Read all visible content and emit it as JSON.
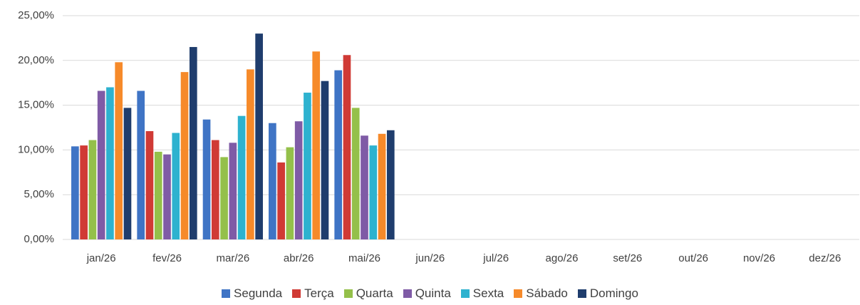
{
  "chart_data": {
    "type": "bar",
    "categories": [
      "jan/26",
      "fev/26",
      "mar/26",
      "abr/26",
      "mai/26",
      "jun/26",
      "jul/26",
      "ago/26",
      "set/26",
      "out/26",
      "nov/26",
      "dez/26"
    ],
    "series": [
      {
        "name": "Segunda",
        "color": "#3f74c5",
        "values": [
          10.4,
          16.6,
          13.4,
          13.0,
          18.9,
          null,
          null,
          null,
          null,
          null,
          null,
          null
        ]
      },
      {
        "name": "Terça",
        "color": "#d03a35",
        "values": [
          10.5,
          12.1,
          11.1,
          8.6,
          20.6,
          null,
          null,
          null,
          null,
          null,
          null,
          null
        ]
      },
      {
        "name": "Quarta",
        "color": "#94c04a",
        "values": [
          11.1,
          9.8,
          9.2,
          10.3,
          14.7,
          null,
          null,
          null,
          null,
          null,
          null,
          null
        ]
      },
      {
        "name": "Quinta",
        "color": "#7f5ba6",
        "values": [
          16.6,
          9.5,
          10.8,
          13.2,
          11.6,
          null,
          null,
          null,
          null,
          null,
          null,
          null
        ]
      },
      {
        "name": "Sexta",
        "color": "#2eb2cf",
        "values": [
          17.0,
          11.9,
          13.8,
          16.4,
          10.5,
          null,
          null,
          null,
          null,
          null,
          null,
          null
        ]
      },
      {
        "name": "Sábado",
        "color": "#f68a2a",
        "values": [
          19.8,
          18.7,
          19.0,
          21.0,
          11.8,
          null,
          null,
          null,
          null,
          null,
          null,
          null
        ]
      },
      {
        "name": "Domingo",
        "color": "#1f3d6d",
        "values": [
          14.7,
          21.5,
          23.0,
          17.7,
          12.2,
          null,
          null,
          null,
          null,
          null,
          null,
          null
        ]
      }
    ],
    "ylim": [
      0,
      25
    ],
    "yticks": [
      {
        "value": 0,
        "label": "0,00%"
      },
      {
        "value": 5,
        "label": "5,00%"
      },
      {
        "value": 10,
        "label": "10,00%"
      },
      {
        "value": 15,
        "label": "15,00%"
      },
      {
        "value": 20,
        "label": "20,00%"
      },
      {
        "value": 25,
        "label": "25,00%"
      }
    ],
    "grid": true,
    "legend": "bottom"
  }
}
